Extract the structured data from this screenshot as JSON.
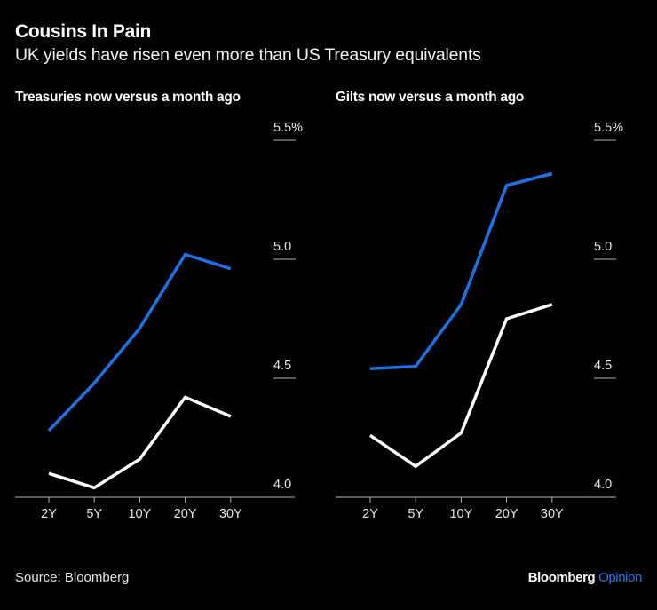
{
  "header": {
    "title": "Cousins In Pain",
    "subtitle": "UK yields have risen even more than US Treasury equivalents"
  },
  "footer": {
    "source": "Source: Bloomberg",
    "brand": "Bloomberg",
    "brand_suffix": "Opinion"
  },
  "colors": {
    "now": "#1a73e8",
    "month_ago": "#ffffff",
    "axis": "#b3b3b3"
  },
  "chart_data": [
    {
      "type": "line",
      "title": "Treasuries now versus a month ago",
      "categories": [
        "2Y",
        "5Y",
        "10Y",
        "20Y",
        "30Y"
      ],
      "ylim": [
        4.0,
        5.5
      ],
      "yticks": [
        4.0,
        4.5,
        5.0,
        5.5
      ],
      "ytick_labels": [
        "4.0",
        "4.5",
        "5.0",
        "5.5%"
      ],
      "series": [
        {
          "name": "Now",
          "color": "#1a73e8",
          "values": [
            4.28,
            4.48,
            4.71,
            5.02,
            4.96
          ]
        },
        {
          "name": "A month ago",
          "color": "#ffffff",
          "values": [
            4.1,
            4.04,
            4.16,
            4.42,
            4.34
          ]
        }
      ]
    },
    {
      "type": "line",
      "title": "Gilts now versus a month ago",
      "categories": [
        "2Y",
        "5Y",
        "10Y",
        "20Y",
        "30Y"
      ],
      "ylim": [
        4.0,
        5.5
      ],
      "yticks": [
        4.0,
        4.5,
        5.0,
        5.5
      ],
      "ytick_labels": [
        "4.0",
        "4.5",
        "5.0",
        "5.5%"
      ],
      "series": [
        {
          "name": "Now",
          "color": "#1a73e8",
          "values": [
            4.54,
            4.55,
            4.81,
            5.31,
            5.36
          ]
        },
        {
          "name": "A month ago",
          "color": "#ffffff",
          "values": [
            4.26,
            4.13,
            4.27,
            4.75,
            4.81
          ]
        }
      ]
    }
  ]
}
